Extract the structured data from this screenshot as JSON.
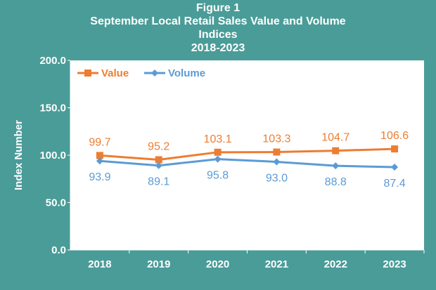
{
  "title_lines": [
    "Figure 1",
    "September Local Retail Sales Value and Volume",
    "Indices",
    "2018-2023"
  ],
  "colors": {
    "background": "#4a9c98",
    "value": "#ed7d31",
    "volume": "#5b9bd5",
    "plot_bg": "#ffffff"
  },
  "chart_data": {
    "type": "line",
    "title": "September Local Retail Sales Value and Volume Indices 2018-2023",
    "xlabel": "",
    "ylabel": "Index Number",
    "categories": [
      "2018",
      "2019",
      "2020",
      "2021",
      "2022",
      "2023"
    ],
    "ylim": [
      0,
      200
    ],
    "yticks": [
      "0.0",
      "50.0",
      "100.0",
      "150.0",
      "200.0"
    ],
    "grid": false,
    "legend": "top-left",
    "series": [
      {
        "name": "Value",
        "marker": "square",
        "values": [
          99.7,
          95.2,
          103.1,
          103.3,
          104.7,
          106.6
        ],
        "labels": [
          "99.7",
          "95.2",
          "103.1",
          "103.3",
          "104.7",
          "106.6"
        ]
      },
      {
        "name": "Volume",
        "marker": "diamond",
        "values": [
          93.9,
          89.1,
          95.8,
          93.0,
          88.8,
          87.4
        ],
        "labels": [
          "93.9",
          "89.1",
          "95.8",
          "93.0",
          "88.8",
          "87.4"
        ]
      }
    ]
  }
}
